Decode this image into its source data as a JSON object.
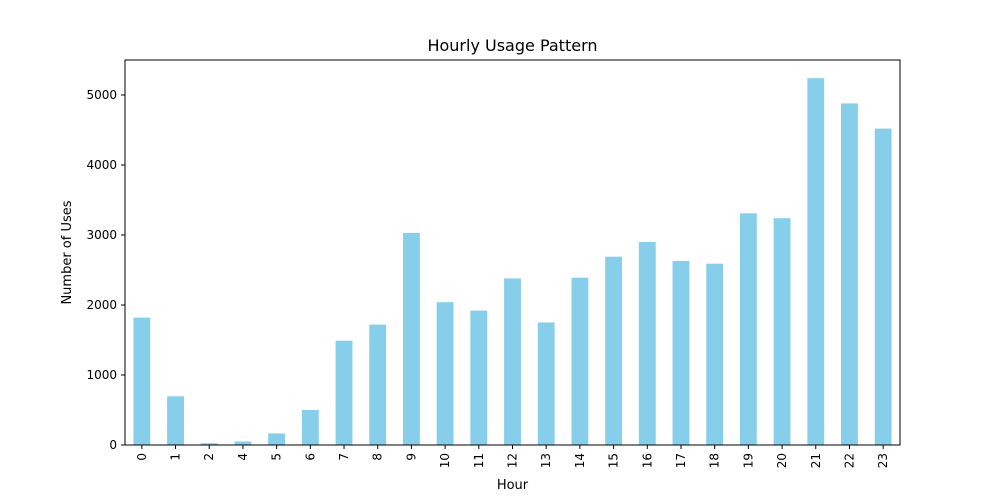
{
  "chart_data": {
    "type": "bar",
    "title": "Hourly Usage Pattern",
    "xlabel": "Hour",
    "ylabel": "Number of Uses",
    "categories": [
      "0",
      "1",
      "2",
      "4",
      "5",
      "6",
      "7",
      "8",
      "9",
      "10",
      "11",
      "12",
      "13",
      "14",
      "15",
      "16",
      "17",
      "18",
      "19",
      "20",
      "21",
      "22",
      "23"
    ],
    "values": [
      1820,
      695,
      25,
      50,
      165,
      500,
      1490,
      1720,
      3030,
      2040,
      1920,
      2380,
      1750,
      2390,
      2690,
      2900,
      2630,
      2590,
      3310,
      3240,
      5240,
      4880,
      4520
    ],
    "ylim": [
      0,
      5500
    ],
    "yticks": [
      0,
      1000,
      2000,
      3000,
      4000,
      5000
    ],
    "bar_color": "#87CEEB",
    "grid": false,
    "legend": false
  }
}
